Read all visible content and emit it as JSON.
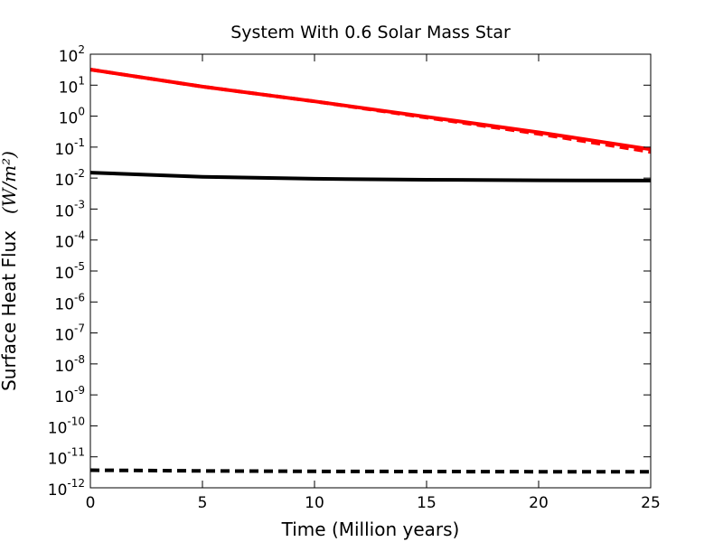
{
  "chart_data": {
    "type": "line",
    "title": "System With 0.6 Solar Mass Star",
    "xlabel": "Time  (Million years)",
    "ylabel": "Surface Heat Flux",
    "ylabel_unit": "(W/m²)",
    "xlim": [
      0,
      25
    ],
    "ylim": [
      1e-12,
      100
    ],
    "yscale": "log",
    "grid": false,
    "x_ticks": [
      {
        "value": 0,
        "label": "0"
      },
      {
        "value": 5,
        "label": "5"
      },
      {
        "value": 10,
        "label": "10"
      },
      {
        "value": 15,
        "label": "15"
      },
      {
        "value": 20,
        "label": "20"
      },
      {
        "value": 25,
        "label": "25"
      }
    ],
    "y_ticks": [
      {
        "exp": 2,
        "base": "10",
        "sup": "2"
      },
      {
        "exp": 1,
        "base": "10",
        "sup": "1"
      },
      {
        "exp": 0,
        "base": "10",
        "sup": "0"
      },
      {
        "exp": -1,
        "base": "10",
        "sup": "-1"
      },
      {
        "exp": -2,
        "base": "10",
        "sup": "-2"
      },
      {
        "exp": -3,
        "base": "10",
        "sup": "-3"
      },
      {
        "exp": -4,
        "base": "10",
        "sup": "-4"
      },
      {
        "exp": -5,
        "base": "10",
        "sup": "-5"
      },
      {
        "exp": -6,
        "base": "10",
        "sup": "-6"
      },
      {
        "exp": -7,
        "base": "10",
        "sup": "-7"
      },
      {
        "exp": -8,
        "base": "10",
        "sup": "-8"
      },
      {
        "exp": -9,
        "base": "10",
        "sup": "-9"
      },
      {
        "exp": -10,
        "base": "10",
        "sup": "-10"
      },
      {
        "exp": -11,
        "base": "10",
        "sup": "-11"
      },
      {
        "exp": -12,
        "base": "10",
        "sup": "-12"
      }
    ],
    "series": [
      {
        "color": "#ff0000",
        "style": "solid",
        "x": [
          0,
          5,
          10,
          15,
          20,
          25
        ],
        "y": [
          32,
          9,
          3,
          0.95,
          0.3,
          0.085
        ]
      },
      {
        "color": "#ff0000",
        "style": "dashed",
        "x": [
          0,
          5,
          10,
          15,
          20,
          25
        ],
        "y": [
          32,
          9,
          3,
          0.9,
          0.27,
          0.07
        ]
      },
      {
        "color": "#000000",
        "style": "solid",
        "x": [
          0,
          5,
          10,
          15,
          20,
          25
        ],
        "y": [
          0.015,
          0.011,
          0.0095,
          0.0088,
          0.0085,
          0.0083
        ]
      },
      {
        "color": "#000000",
        "style": "dashed",
        "x": [
          0,
          5,
          10,
          15,
          20,
          25
        ],
        "y": [
          3.7e-12,
          3.5e-12,
          3.4e-12,
          3.35e-12,
          3.3e-12,
          3.3e-12
        ]
      }
    ]
  }
}
